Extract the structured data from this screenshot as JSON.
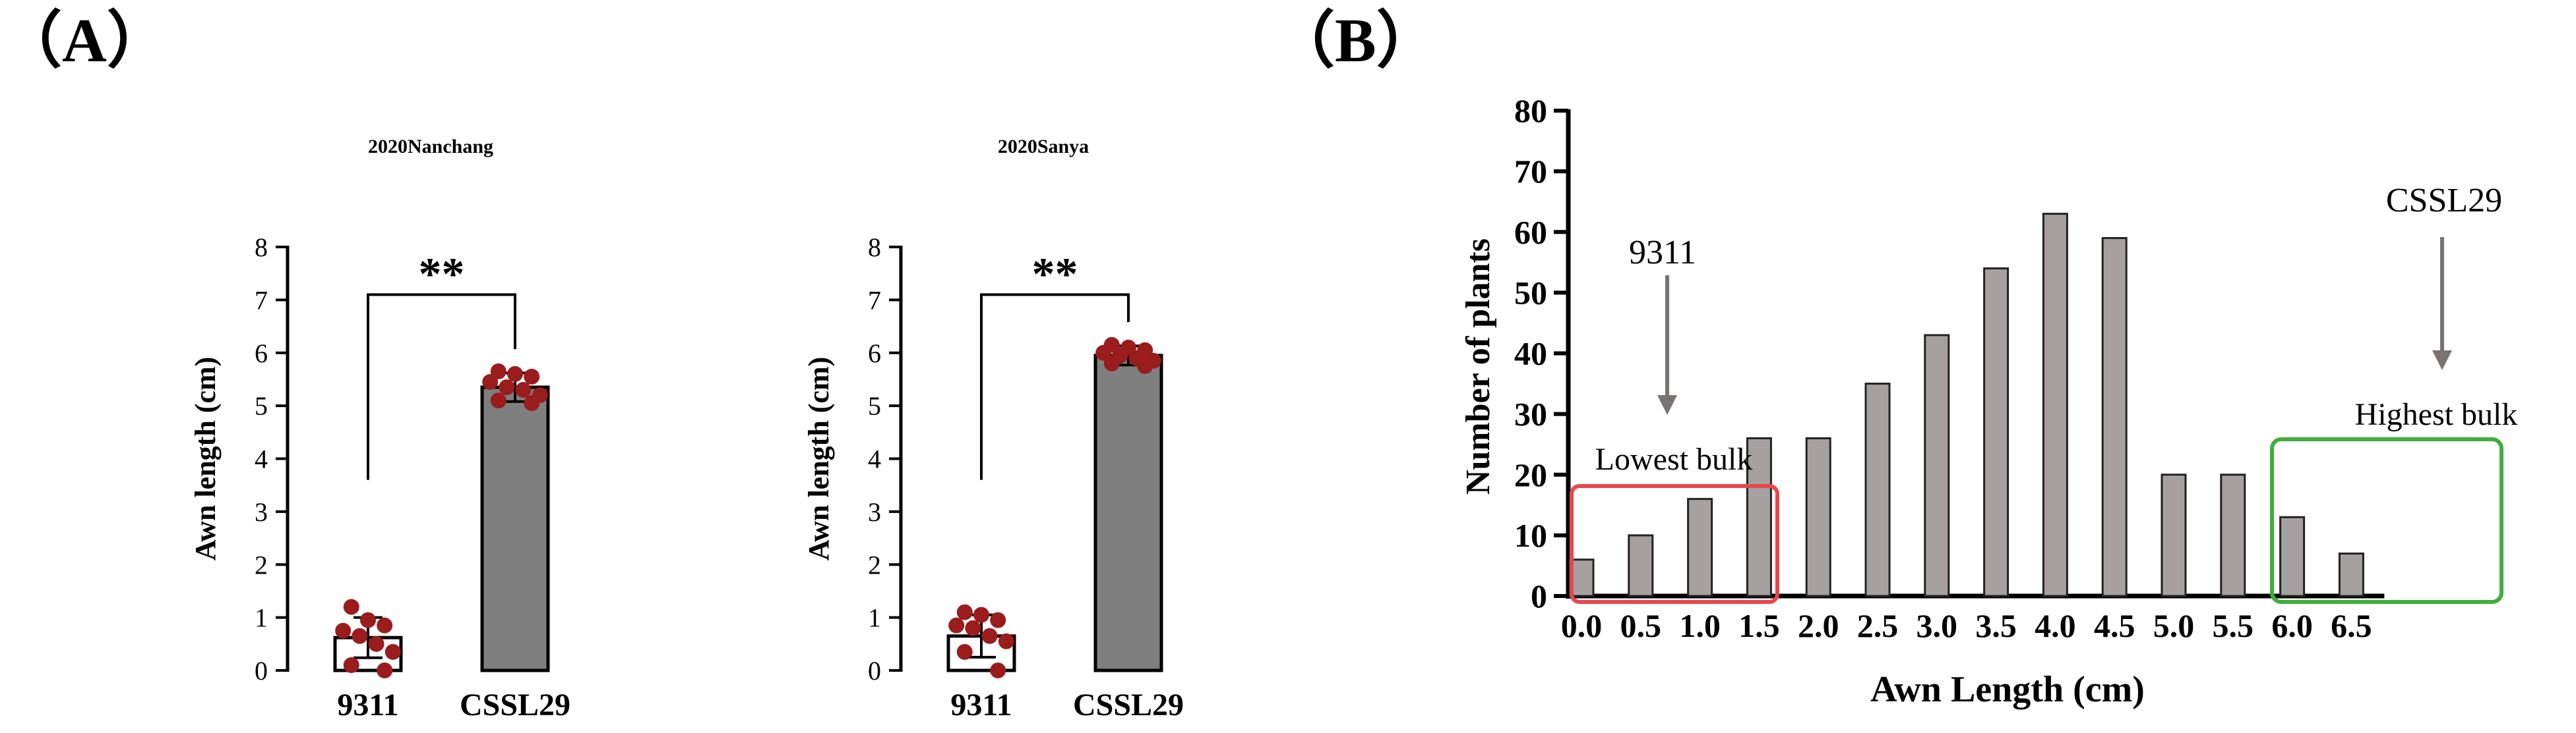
{
  "panels": {
    "a_label": "（A）",
    "b_label": "（B）"
  },
  "colors": {
    "bar_fill_9311": "#ffffff",
    "bar_fill_cssl29": "#7f7f7f",
    "point": "#9b1c1c",
    "hist_bar": "#a6a0a0",
    "red_box": "#e8474d",
    "green_box": "#3fae3a",
    "arrow": "#7a7373",
    "axis": "#000000"
  },
  "chart_data": [
    {
      "type": "bar",
      "title": "2020Nanchang",
      "ylabel": "Awn length (cm)",
      "xlabel": "",
      "categories": [
        "9311",
        "CSSL29"
      ],
      "values": [
        0.62,
        5.35
      ],
      "errors": [
        0.38,
        0.27
      ],
      "points": [
        [
          1.2,
          0.95,
          0.85,
          0.75,
          0.65,
          0.5,
          0.35,
          0.1,
          0.0
        ],
        [
          5.65,
          5.6,
          5.55,
          5.45,
          5.35,
          5.3,
          5.2,
          5.1,
          5.05
        ]
      ],
      "yticks": [
        0,
        1,
        2,
        3,
        4,
        5,
        6,
        7,
        8
      ],
      "ylim": [
        0,
        8
      ],
      "significance": "**"
    },
    {
      "type": "bar",
      "title": "2020Sanya",
      "ylabel": "Awn length (cm)",
      "xlabel": "",
      "categories": [
        "9311",
        "CSSL29"
      ],
      "values": [
        0.65,
        5.95
      ],
      "errors": [
        0.4,
        0.18
      ],
      "points": [
        [
          1.1,
          1.05,
          0.95,
          0.85,
          0.8,
          0.65,
          0.55,
          0.35,
          0.0
        ],
        [
          6.15,
          6.1,
          6.05,
          6.0,
          5.95,
          5.9,
          5.85,
          5.8,
          5.75
        ]
      ],
      "yticks": [
        0,
        1,
        2,
        3,
        4,
        5,
        6,
        7,
        8
      ],
      "ylim": [
        0,
        8
      ],
      "significance": "**"
    },
    {
      "type": "bar",
      "title": "",
      "ylabel": "Number of plants",
      "xlabel": "Awn Length (cm)",
      "categories": [
        "0.0",
        "0.5",
        "1.0",
        "1.5",
        "2.0",
        "2.5",
        "3.0",
        "3.5",
        "4.0",
        "4.5",
        "5.0",
        "5.5",
        "6.0",
        "6.5"
      ],
      "values": [
        6,
        10,
        16,
        26,
        26,
        35,
        43,
        54,
        63,
        59,
        20,
        20,
        13,
        7
      ],
      "yticks": [
        0,
        10,
        20,
        30,
        40,
        50,
        60,
        70,
        80
      ],
      "ylim": [
        0,
        80
      ],
      "annotations": {
        "left_label": "9311",
        "right_label": "CSSL29",
        "left_box_label": "Lowest bulk",
        "right_box_label": "Highest bulk"
      }
    }
  ]
}
